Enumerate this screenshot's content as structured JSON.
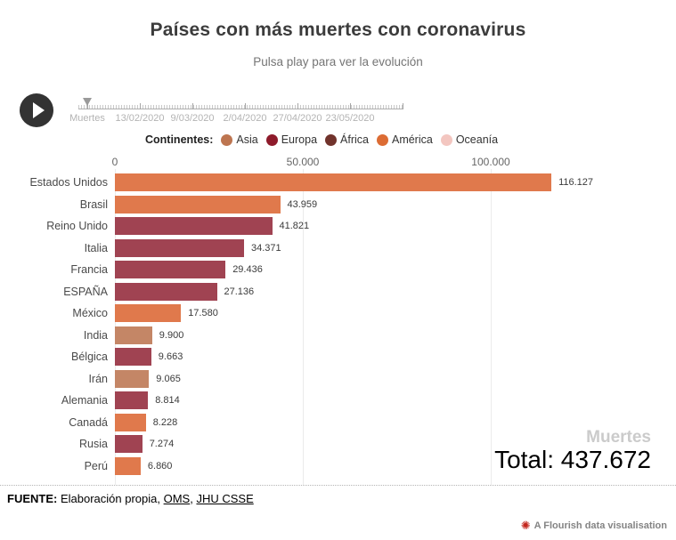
{
  "header": {
    "title": "Países con más muertes con coronavirus",
    "subtitle": "Pulsa play para ver la evolución"
  },
  "timeline": {
    "labels": [
      "Muertes",
      "13/02/2020",
      "9/03/2020",
      "2/04/2020",
      "27/04/2020",
      "23/05/2020"
    ]
  },
  "legend": {
    "label": "Continentes:",
    "items": [
      {
        "name": "Asia",
        "color": "#bd7550"
      },
      {
        "name": "Europa",
        "color": "#8e1b2b"
      },
      {
        "name": "África",
        "color": "#71332c"
      },
      {
        "name": "América",
        "color": "#dc6c34"
      },
      {
        "name": "Oceanía",
        "color": "#f3c6c0"
      }
    ]
  },
  "chart_data": {
    "type": "bar",
    "orientation": "horizontal",
    "title": "Países con más muertes con coronavirus",
    "xlabel": "Muertes",
    "x_ticks": [
      "0",
      "50.000",
      "100.000"
    ],
    "x_tick_values": [
      0,
      50000,
      100000
    ],
    "xlim": [
      0,
      118000
    ],
    "grid": true,
    "bar_colors": {
      "Asia": "#c48666",
      "Europa": "#a04352",
      "América": "#e0794c"
    },
    "rows": [
      {
        "country": "Estados Unidos",
        "continent": "América",
        "value": 116127,
        "label": "116.127"
      },
      {
        "country": "Brasil",
        "continent": "América",
        "value": 43959,
        "label": "43.959"
      },
      {
        "country": "Reino Unido",
        "continent": "Europa",
        "value": 41821,
        "label": "41.821"
      },
      {
        "country": "Italia",
        "continent": "Europa",
        "value": 34371,
        "label": "34.371"
      },
      {
        "country": "Francia",
        "continent": "Europa",
        "value": 29436,
        "label": "29.436"
      },
      {
        "country": "ESPAÑA",
        "continent": "Europa",
        "value": 27136,
        "label": "27.136"
      },
      {
        "country": "México",
        "continent": "América",
        "value": 17580,
        "label": "17.580"
      },
      {
        "country": "India",
        "continent": "Asia",
        "value": 9900,
        "label": "9.900"
      },
      {
        "country": "Bélgica",
        "continent": "Europa",
        "value": 9663,
        "label": "9.663"
      },
      {
        "country": "Irán",
        "continent": "Asia",
        "value": 9065,
        "label": "9.065"
      },
      {
        "country": "Alemania",
        "continent": "Europa",
        "value": 8814,
        "label": "8.814"
      },
      {
        "country": "Canadá",
        "continent": "América",
        "value": 8228,
        "label": "8.228"
      },
      {
        "country": "Rusia",
        "continent": "Europa",
        "value": 7274,
        "label": "7.274"
      },
      {
        "country": "Perú",
        "continent": "América",
        "value": 6860,
        "label": "6.860"
      }
    ],
    "unit_label": "Muertes",
    "total_value": 437672,
    "total_label": "Total: 437.672"
  },
  "footer": {
    "source_label": "FUENTE:",
    "source_text": " Elaboración propia, ",
    "link1": "OMS",
    "separator": ", ",
    "link2": "JHU CSSE",
    "credit": "A Flourish data visualisation",
    "credit_icon": "✺"
  }
}
